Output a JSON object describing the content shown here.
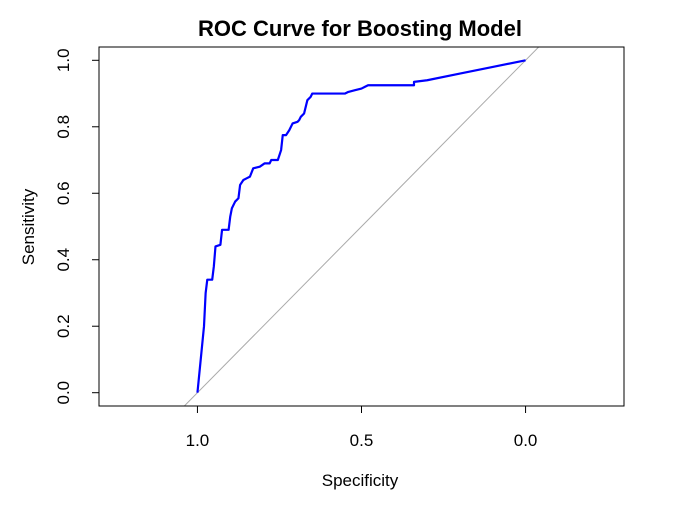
{
  "chart_data": {
    "type": "line",
    "title": "ROC Curve for Boosting Model",
    "xlabel": "Specificity",
    "ylabel": "Sensitivity",
    "x_reversed": true,
    "xlim": [
      1.3,
      -0.3
    ],
    "ylim": [
      -0.04,
      1.04
    ],
    "x_ticks": [
      1.0,
      0.5,
      0.0
    ],
    "x_tick_labels": [
      "1.0",
      "0.5",
      "0.0"
    ],
    "y_ticks": [
      0.0,
      0.2,
      0.4,
      0.6,
      0.8,
      1.0
    ],
    "y_tick_labels": [
      "0.0",
      "0.2",
      "0.4",
      "0.6",
      "0.8",
      "1.0"
    ],
    "grid": false,
    "reference_line": {
      "color": "#aaaaaa",
      "points": [
        [
          1.0,
          0.0
        ],
        [
          0.0,
          1.0
        ]
      ]
    },
    "series": [
      {
        "color": "#0000ff",
        "points": [
          [
            1.0,
            0.0
          ],
          [
            0.99,
            0.1
          ],
          [
            0.98,
            0.2
          ],
          [
            0.975,
            0.3
          ],
          [
            0.97,
            0.34
          ],
          [
            0.955,
            0.34
          ],
          [
            0.95,
            0.38
          ],
          [
            0.945,
            0.44
          ],
          [
            0.93,
            0.445
          ],
          [
            0.925,
            0.49
          ],
          [
            0.905,
            0.49
          ],
          [
            0.9,
            0.53
          ],
          [
            0.895,
            0.555
          ],
          [
            0.885,
            0.575
          ],
          [
            0.875,
            0.585
          ],
          [
            0.87,
            0.625
          ],
          [
            0.86,
            0.64
          ],
          [
            0.85,
            0.645
          ],
          [
            0.84,
            0.65
          ],
          [
            0.83,
            0.675
          ],
          [
            0.81,
            0.68
          ],
          [
            0.795,
            0.69
          ],
          [
            0.78,
            0.69
          ],
          [
            0.775,
            0.7
          ],
          [
            0.755,
            0.7
          ],
          [
            0.745,
            0.73
          ],
          [
            0.74,
            0.775
          ],
          [
            0.73,
            0.775
          ],
          [
            0.72,
            0.79
          ],
          [
            0.71,
            0.81
          ],
          [
            0.695,
            0.815
          ],
          [
            0.69,
            0.82
          ],
          [
            0.685,
            0.83
          ],
          [
            0.675,
            0.84
          ],
          [
            0.665,
            0.88
          ],
          [
            0.655,
            0.89
          ],
          [
            0.65,
            0.9
          ],
          [
            0.6,
            0.9
          ],
          [
            0.55,
            0.9
          ],
          [
            0.54,
            0.905
          ],
          [
            0.52,
            0.91
          ],
          [
            0.5,
            0.915
          ],
          [
            0.49,
            0.92
          ],
          [
            0.48,
            0.925
          ],
          [
            0.4,
            0.925
          ],
          [
            0.34,
            0.925
          ],
          [
            0.34,
            0.935
          ],
          [
            0.3,
            0.94
          ],
          [
            0.2,
            0.96
          ],
          [
            0.1,
            0.98
          ],
          [
            0.0,
            1.0
          ]
        ]
      }
    ]
  }
}
